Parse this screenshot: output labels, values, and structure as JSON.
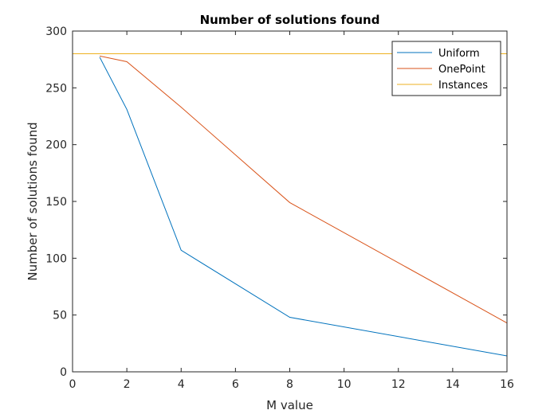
{
  "chart_data": {
    "type": "line",
    "title": "Number of solutions found",
    "xlabel": "M value",
    "ylabel": "Number of solutions found",
    "xlim": [
      0,
      16
    ],
    "ylim": [
      0,
      300
    ],
    "xticks": [
      0,
      2,
      4,
      6,
      8,
      10,
      12,
      14,
      16
    ],
    "yticks": [
      0,
      50,
      100,
      150,
      200,
      250,
      300
    ],
    "grid": false,
    "legend_position": "top-right",
    "series": [
      {
        "name": "Uniform",
        "color": "#0072BD",
        "x": [
          1,
          2,
          4,
          8,
          16
        ],
        "y": [
          277,
          231,
          107,
          48,
          14
        ]
      },
      {
        "name": "OnePoint",
        "color": "#D95319",
        "x": [
          1,
          2,
          4,
          8,
          16
        ],
        "y": [
          278,
          273,
          233,
          149,
          43
        ]
      },
      {
        "name": "Instances",
        "color": "#EDB120",
        "x": [
          0,
          16
        ],
        "y": [
          280,
          280
        ]
      }
    ]
  }
}
